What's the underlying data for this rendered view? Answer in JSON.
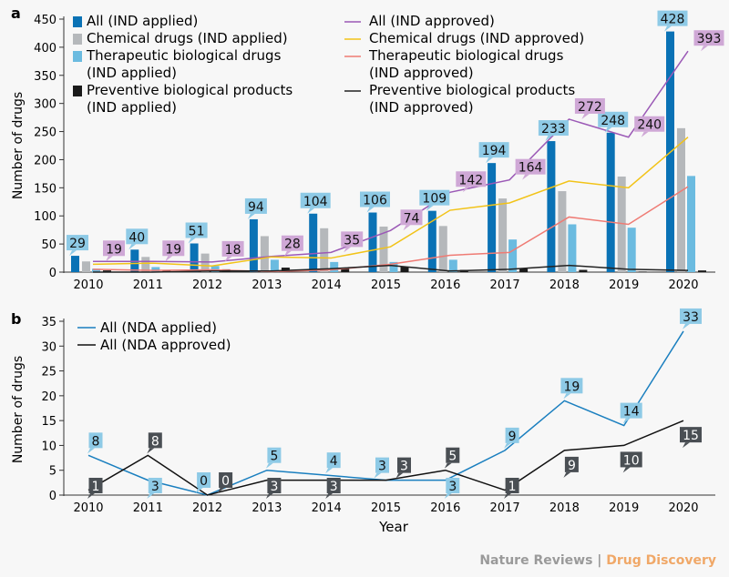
{
  "footer": {
    "publisher": "Nature Reviews",
    "separator": "|",
    "journal": "Drug Discovery"
  },
  "chart_data": [
    {
      "panel": "a",
      "type": "bar",
      "ylabel": "Number of drugs",
      "xlabel": "",
      "ylim": [
        0,
        450
      ],
      "yticks": [
        0,
        50,
        100,
        150,
        200,
        250,
        300,
        350,
        400,
        450
      ],
      "categories": [
        "2010",
        "2011",
        "2012",
        "2013",
        "2014",
        "2015",
        "2016",
        "2017",
        "2018",
        "2019",
        "2020"
      ],
      "bar_series": [
        {
          "name": "All (IND applied)",
          "color": "#0a72b5",
          "values": [
            29,
            40,
            51,
            94,
            104,
            106,
            109,
            194,
            233,
            248,
            428
          ],
          "labeled": true
        },
        {
          "name": "Chemical drugs (IND applied)",
          "color": "#b5b8bb",
          "values": [
            19,
            27,
            33,
            64,
            78,
            81,
            82,
            131,
            144,
            170,
            256
          ]
        },
        {
          "name": "Therapeutic biological drugs (IND applied)",
          "color": "#6bbbe0",
          "values": [
            6,
            9,
            11,
            22,
            18,
            18,
            22,
            58,
            85,
            79,
            171
          ]
        },
        {
          "name": "Preventive biological products (IND applied)",
          "color": "#1a1a1a",
          "values": [
            3,
            3,
            5,
            8,
            8,
            9,
            4,
            6,
            4,
            1,
            3
          ]
        }
      ],
      "line_series": [
        {
          "name": "All (IND approved)",
          "color": "#9b59b6",
          "values": [
            19,
            19,
            18,
            28,
            35,
            74,
            142,
            164,
            272,
            240,
            393
          ],
          "labeled": true
        },
        {
          "name": "Chemical drugs (IND approved)",
          "color": "#f2c318",
          "values": [
            14,
            16,
            11,
            27,
            25,
            45,
            110,
            123,
            162,
            150,
            240
          ]
        },
        {
          "name": "Therapeutic biological drugs (IND approved)",
          "color": "#ef7b74",
          "values": [
            5,
            3,
            4,
            1,
            4,
            14,
            30,
            35,
            98,
            85,
            152
          ]
        },
        {
          "name": "Preventive biological products (IND approved)",
          "color": "#222222",
          "values": [
            0,
            0,
            2,
            2,
            6,
            12,
            2,
            5,
            12,
            5,
            3
          ]
        }
      ]
    },
    {
      "panel": "b",
      "type": "line",
      "ylabel": "Number of drugs",
      "xlabel": "Year",
      "ylim": [
        0,
        35
      ],
      "yticks": [
        0,
        5,
        10,
        15,
        20,
        25,
        30,
        35
      ],
      "categories": [
        "2010",
        "2011",
        "2012",
        "2013",
        "2014",
        "2015",
        "2016",
        "2017",
        "2018",
        "2019",
        "2020"
      ],
      "series": [
        {
          "name": "All (NDA applied)",
          "color": "#1a7fbf",
          "label_bg": "#8ecae6",
          "values": [
            8,
            3,
            0,
            5,
            4,
            3,
            3,
            9,
            19,
            14,
            33
          ]
        },
        {
          "name": "All (NDA approved)",
          "color": "#111111",
          "label_bg": "#4a4f54",
          "values": [
            1,
            8,
            0,
            3,
            3,
            3,
            5,
            1,
            9,
            10,
            15
          ]
        }
      ]
    }
  ]
}
